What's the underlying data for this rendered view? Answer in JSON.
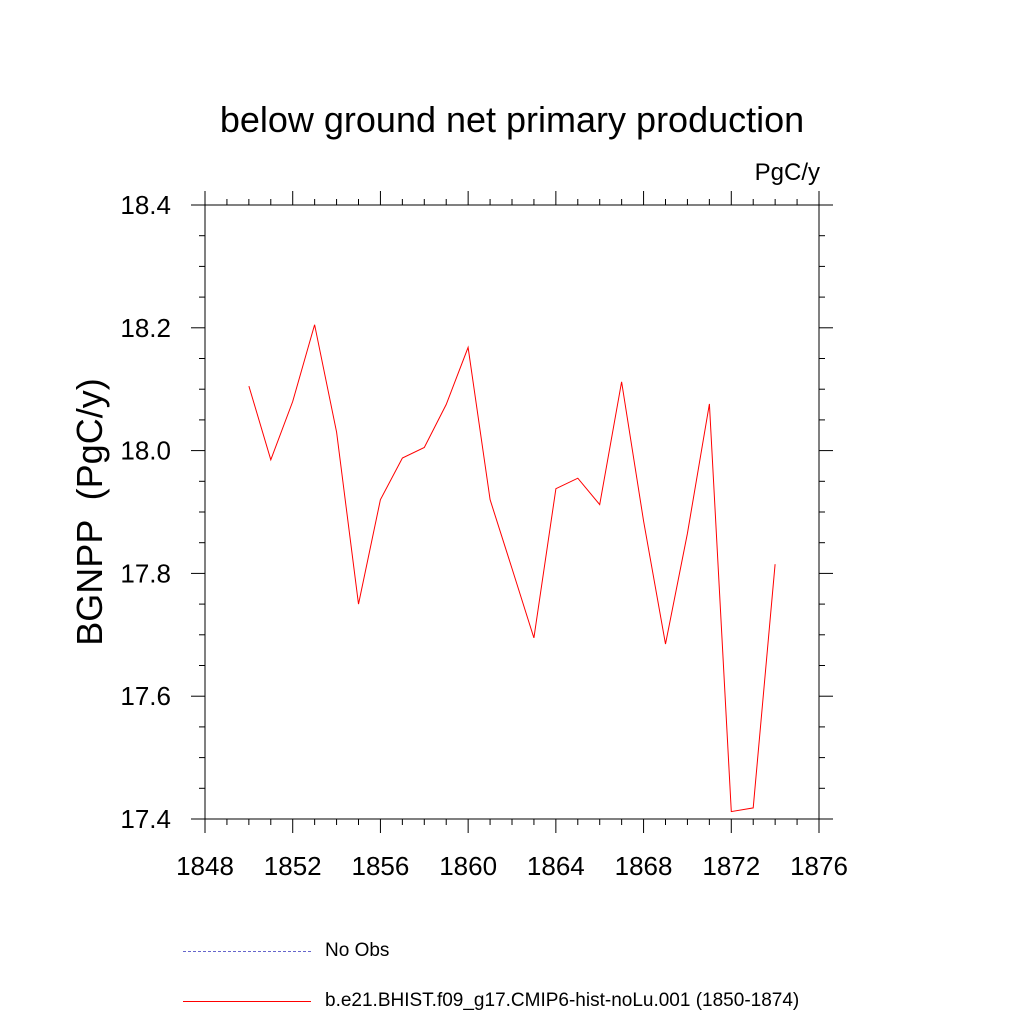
{
  "chart_data": {
    "type": "line",
    "title": "below ground net primary production",
    "units_label": "PgC/y",
    "ylabel": "BGNPP  (PgC/y)",
    "xlabel": "",
    "xlim": [
      1848,
      1876
    ],
    "ylim": [
      17.4,
      18.4
    ],
    "xticks": [
      "1848",
      "1852",
      "1856",
      "1860",
      "1864",
      "1868",
      "1872",
      "1876"
    ],
    "yticks": [
      "17.4",
      "17.6",
      "17.8",
      "18.0",
      "18.2",
      "18.4"
    ],
    "grid": false,
    "legend_position": "bottom",
    "series": [
      {
        "name": "b.e21.BHIST.f09_g17.CMIP6-hist-noLu.001 (1850-1874)",
        "color": "#ff0000",
        "style": "solid",
        "x": [
          1850,
          1851,
          1852,
          1853,
          1854,
          1855,
          1856,
          1857,
          1858,
          1859,
          1860,
          1861,
          1862,
          1863,
          1864,
          1865,
          1866,
          1867,
          1868,
          1869,
          1870,
          1871,
          1872,
          1873,
          1874
        ],
        "y": [
          18.105,
          17.985,
          18.08,
          18.205,
          18.03,
          17.75,
          17.92,
          17.988,
          18.005,
          18.075,
          18.168,
          17.92,
          17.808,
          17.695,
          17.938,
          17.955,
          17.912,
          18.112,
          17.885,
          17.685,
          17.865,
          18.076,
          17.412,
          17.418,
          17.815
        ]
      }
    ],
    "legend": [
      {
        "label": "No Obs",
        "color": "#6666cc",
        "style": "dashed"
      },
      {
        "label": "b.e21.BHIST.f09_g17.CMIP6-hist-noLu.001 (1850-1874)",
        "color": "#ff0000",
        "style": "solid"
      }
    ]
  }
}
